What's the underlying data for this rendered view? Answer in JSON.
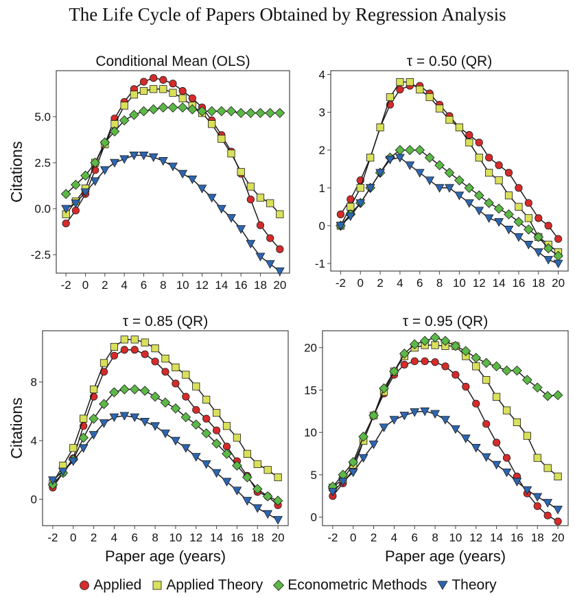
{
  "title": "The Life Cycle of Papers Obtained by Regression Analysis",
  "colors": {
    "Applied": "#d62b2b",
    "Applied Theory": "#d9e05a",
    "Econometric Methods": "#5cb847",
    "Theory": "#2d66b0",
    "line": "#1a1a1a"
  },
  "legend": [
    {
      "name": "Applied",
      "marker": "circle"
    },
    {
      "name": "Applied Theory",
      "marker": "square"
    },
    {
      "name": "Econometric Methods",
      "marker": "diamond"
    },
    {
      "name": "Theory",
      "marker": "triangle-down"
    }
  ],
  "chart_data": [
    {
      "type": "line",
      "title": "Conditional Mean (OLS)",
      "xlabel": "",
      "ylabel": "Citations",
      "x": [
        -2,
        -1,
        0,
        1,
        2,
        3,
        4,
        5,
        6,
        7,
        8,
        9,
        10,
        11,
        12,
        13,
        14,
        15,
        16,
        17,
        18,
        19,
        20
      ],
      "xlim": [
        -3,
        21
      ],
      "ylim": [
        -3.5,
        7.5
      ],
      "xticks": [
        -2,
        0,
        2,
        4,
        6,
        8,
        10,
        12,
        14,
        16,
        18,
        20
      ],
      "yticks": [
        -2.5,
        0.0,
        2.5,
        5.0
      ],
      "ytick_labels": [
        "-2.5",
        "0.0",
        "2.5",
        "5.0"
      ],
      "series": [
        {
          "name": "Applied",
          "values": [
            -0.8,
            -0.1,
            0.8,
            2.1,
            3.5,
            4.9,
            5.8,
            6.5,
            6.9,
            7.1,
            7.0,
            6.8,
            6.4,
            6.0,
            5.5,
            4.8,
            4.0,
            3.1,
            1.9,
            0.5,
            -0.9,
            -1.6,
            -2.2
          ]
        },
        {
          "name": "Applied Theory",
          "values": [
            -0.3,
            0.4,
            1.1,
            2.5,
            3.5,
            4.6,
            5.6,
            6.2,
            6.4,
            6.5,
            6.5,
            6.3,
            6.0,
            5.6,
            5.2,
            4.6,
            3.8,
            3.0,
            2.0,
            1.2,
            0.6,
            0.3,
            -0.3
          ]
        },
        {
          "name": "Econometric Methods",
          "values": [
            0.8,
            1.3,
            1.8,
            2.5,
            3.6,
            4.2,
            4.8,
            5.1,
            5.3,
            5.4,
            5.5,
            5.5,
            5.5,
            5.4,
            5.3,
            5.3,
            5.3,
            5.3,
            5.2,
            5.2,
            5.2,
            5.2,
            5.2
          ]
        },
        {
          "name": "Theory",
          "values": [
            0.0,
            0.3,
            0.9,
            1.5,
            2.1,
            2.5,
            2.7,
            2.9,
            2.9,
            2.8,
            2.6,
            2.3,
            1.9,
            1.6,
            1.1,
            0.6,
            0.0,
            -0.5,
            -1.1,
            -1.9,
            -2.6,
            -3.0,
            -3.4
          ]
        }
      ]
    },
    {
      "type": "line",
      "title": "τ = 0.50 (QR)",
      "xlabel": "",
      "ylabel": "",
      "x": [
        -2,
        -1,
        0,
        1,
        2,
        3,
        4,
        5,
        6,
        7,
        8,
        9,
        10,
        11,
        12,
        13,
        14,
        15,
        16,
        17,
        18,
        19,
        20
      ],
      "xlim": [
        -3,
        21
      ],
      "ylim": [
        -1.2,
        4.1
      ],
      "xticks": [
        -2,
        0,
        2,
        4,
        6,
        8,
        10,
        12,
        14,
        16,
        18,
        20
      ],
      "yticks": [
        -1,
        0,
        1,
        2,
        3,
        4
      ],
      "ytick_labels": [
        "-1",
        "0",
        "1",
        "2",
        "3",
        "4"
      ],
      "series": [
        {
          "name": "Applied",
          "values": [
            0.3,
            0.7,
            1.2,
            1.8,
            2.6,
            3.2,
            3.6,
            3.7,
            3.7,
            3.5,
            3.2,
            2.9,
            2.6,
            2.4,
            2.2,
            1.8,
            1.6,
            1.4,
            1.0,
            0.6,
            0.2,
            0.0,
            -0.35
          ]
        },
        {
          "name": "Applied Theory",
          "values": [
            0.0,
            0.5,
            1.0,
            1.8,
            2.6,
            3.4,
            3.8,
            3.8,
            3.6,
            3.4,
            3.1,
            2.8,
            2.6,
            2.2,
            1.8,
            1.4,
            1.2,
            0.8,
            0.5,
            0.2,
            -0.3,
            -0.5,
            -0.7
          ]
        },
        {
          "name": "Econometric Methods",
          "values": [
            0.0,
            0.3,
            0.6,
            1.0,
            1.4,
            1.8,
            2.0,
            2.0,
            2.0,
            1.8,
            1.6,
            1.4,
            1.2,
            1.0,
            0.8,
            0.6,
            0.45,
            0.3,
            0.1,
            -0.1,
            -0.3,
            -0.6,
            -0.8
          ]
        },
        {
          "name": "Theory",
          "values": [
            0.0,
            0.25,
            0.6,
            1.0,
            1.4,
            1.75,
            1.8,
            1.6,
            1.4,
            1.2,
            1.0,
            1.0,
            0.8,
            0.6,
            0.4,
            0.2,
            0.1,
            -0.1,
            -0.3,
            -0.5,
            -0.7,
            -0.9,
            -1.0
          ]
        }
      ]
    },
    {
      "type": "line",
      "title": "τ = 0.85 (QR)",
      "xlabel": "Paper age (years)",
      "ylabel": "Citations",
      "x": [
        -2,
        -1,
        0,
        1,
        2,
        3,
        4,
        5,
        6,
        7,
        8,
        9,
        10,
        11,
        12,
        13,
        14,
        15,
        16,
        17,
        18,
        19,
        20
      ],
      "xlim": [
        -3,
        21
      ],
      "ylim": [
        -1.8,
        11.5
      ],
      "xticks": [
        -2,
        0,
        2,
        4,
        6,
        8,
        10,
        12,
        14,
        16,
        18,
        20
      ],
      "yticks": [
        0,
        4,
        8
      ],
      "ytick_labels": [
        "0",
        "4",
        "8"
      ],
      "series": [
        {
          "name": "Applied",
          "values": [
            0.8,
            1.8,
            2.8,
            5.0,
            7.0,
            8.7,
            9.8,
            10.2,
            10.2,
            9.9,
            9.4,
            8.7,
            7.9,
            7.0,
            6.1,
            5.5,
            4.7,
            3.6,
            2.6,
            1.6,
            0.5,
            0.2,
            -0.4
          ]
        },
        {
          "name": "Applied Theory",
          "values": [
            1.1,
            2.3,
            3.5,
            5.5,
            7.5,
            9.3,
            10.4,
            10.9,
            10.9,
            10.7,
            10.3,
            9.6,
            9.0,
            8.5,
            7.7,
            6.8,
            5.9,
            5.0,
            4.2,
            3.1,
            2.4,
            2.0,
            1.5
          ]
        },
        {
          "name": "Econometric Methods",
          "values": [
            1.0,
            1.8,
            2.7,
            4.2,
            5.5,
            6.5,
            7.3,
            7.5,
            7.5,
            7.4,
            7.0,
            6.6,
            6.2,
            5.6,
            5.1,
            4.5,
            3.8,
            3.1,
            2.3,
            1.5,
            0.7,
            0.2,
            -0.1
          ]
        },
        {
          "name": "Theory",
          "values": [
            1.3,
            1.9,
            2.6,
            3.5,
            4.4,
            5.2,
            5.6,
            5.7,
            5.6,
            5.3,
            5.0,
            4.5,
            4.0,
            3.5,
            2.9,
            2.4,
            1.8,
            1.2,
            0.6,
            -0.1,
            -0.6,
            -1.0,
            -1.4
          ]
        }
      ]
    },
    {
      "type": "line",
      "title": "τ = 0.95 (QR)",
      "xlabel": "Paper age (years)",
      "ylabel": "",
      "x": [
        -2,
        -1,
        0,
        1,
        2,
        3,
        4,
        5,
        6,
        7,
        8,
        9,
        10,
        11,
        12,
        13,
        14,
        15,
        16,
        17,
        18,
        19,
        20
      ],
      "xlim": [
        -3,
        21
      ],
      "ylim": [
        -1.0,
        22.0
      ],
      "xticks": [
        -2,
        0,
        2,
        4,
        6,
        8,
        10,
        12,
        14,
        16,
        18,
        20
      ],
      "yticks": [
        0,
        5,
        10,
        15,
        20
      ],
      "ytick_labels": [
        "0",
        "5",
        "10",
        "15",
        "20"
      ],
      "series": [
        {
          "name": "Applied",
          "values": [
            2.5,
            4.0,
            5.6,
            9.0,
            12.0,
            14.6,
            16.8,
            18.0,
            18.4,
            18.4,
            18.3,
            17.8,
            16.8,
            15.4,
            13.4,
            11.0,
            8.8,
            7.0,
            4.8,
            2.8,
            1.3,
            0.2,
            -0.5
          ]
        },
        {
          "name": "Applied Theory",
          "values": [
            3.5,
            4.5,
            6.2,
            9.0,
            12.0,
            14.8,
            17.2,
            19.0,
            20.0,
            20.3,
            20.3,
            20.2,
            20.2,
            19.0,
            17.8,
            16.2,
            14.2,
            12.6,
            11.2,
            9.6,
            7.0,
            5.8,
            4.8
          ]
        },
        {
          "name": "Econometric Methods",
          "values": [
            3.6,
            5.0,
            6.5,
            9.5,
            12.0,
            15.2,
            17.2,
            19.3,
            20.4,
            20.8,
            21.2,
            20.8,
            20.2,
            19.6,
            18.8,
            18.2,
            17.8,
            17.3,
            17.3,
            16.2,
            15.3,
            14.3,
            14.4
          ]
        },
        {
          "name": "Theory",
          "values": [
            3.0,
            4.2,
            5.3,
            7.0,
            8.6,
            10.6,
            11.5,
            12.0,
            12.4,
            12.5,
            12.2,
            11.5,
            10.4,
            9.3,
            8.2,
            7.1,
            6.2,
            5.3,
            4.2,
            3.2,
            2.4,
            1.7,
            0.9
          ]
        }
      ]
    }
  ]
}
